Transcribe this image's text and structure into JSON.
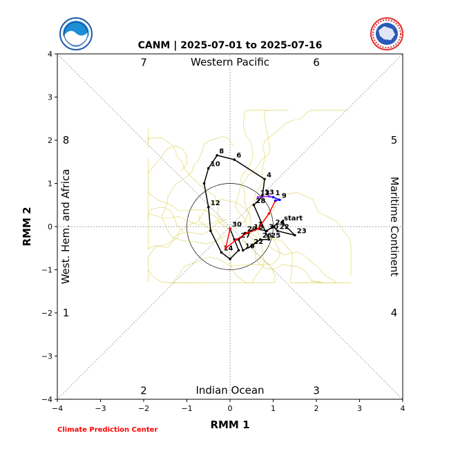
{
  "title": "CANM | 2025-07-01 to 2025-07-16",
  "credit": "Climate Prediction Center",
  "chart_data": {
    "type": "line",
    "xlabel": "RMM 1",
    "ylabel": "RMM 2",
    "xlim": [
      -4,
      4
    ],
    "ylim": [
      -4,
      4
    ],
    "xticks": [
      "−4",
      "−3",
      "−2",
      "−1",
      "0",
      "1",
      "2",
      "3",
      "4"
    ],
    "yticks": [
      "−4",
      "−3",
      "−2",
      "−1",
      "0",
      "1",
      "2",
      "3",
      "4"
    ],
    "regions": {
      "top": "Western Pacific",
      "bottom": "Indian Ocean",
      "left": "West. Hem. and Africa",
      "right": "Maritime Continent"
    },
    "phases": [
      {
        "label": "1",
        "x": -3.8,
        "y": -2.0
      },
      {
        "label": "2",
        "x": -2.0,
        "y": -3.8
      },
      {
        "label": "3",
        "x": 2.0,
        "y": -3.8
      },
      {
        "label": "4",
        "x": 3.8,
        "y": -2.0
      },
      {
        "label": "5",
        "x": 3.8,
        "y": 2.0
      },
      {
        "label": "6",
        "x": 2.0,
        "y": 3.8
      },
      {
        "label": "7",
        "x": -2.0,
        "y": 3.8
      },
      {
        "label": "8",
        "x": -3.8,
        "y": 2.0
      }
    ],
    "series": [
      {
        "color": "#000000",
        "points": [
          {
            "x": 1.2,
            "y": 0.1,
            "label": "start"
          },
          {
            "x": 1.5,
            "y": -0.2,
            "label": "23"
          },
          {
            "x": 1.1,
            "y": -0.1,
            "label": "22"
          },
          {
            "x": 1.0,
            "y": 0.0,
            "label": "24"
          },
          {
            "x": 0.85,
            "y": -0.1,
            "label": "30"
          },
          {
            "x": 0.6,
            "y": -0.05,
            "label": "1"
          },
          {
            "x": 0.5,
            "y": -0.1,
            "label": "18"
          },
          {
            "x": 0.35,
            "y": -0.15,
            "label": "20"
          },
          {
            "x": 0.2,
            "y": -0.3,
            "label": "27"
          },
          {
            "x": 0.3,
            "y": -0.55,
            "label": "16"
          },
          {
            "x": 0.5,
            "y": -0.45,
            "label": "22"
          },
          {
            "x": 0.7,
            "y": -0.3,
            "label": "26"
          },
          {
            "x": 0.9,
            "y": -0.3,
            "label": "25"
          },
          {
            "x": 0.55,
            "y": 0.5,
            "label": "28"
          },
          {
            "x": 0.75,
            "y": 0.7,
            "label": "13"
          },
          {
            "x": 0.8,
            "y": 1.1,
            "label": "4"
          },
          {
            "x": 0.1,
            "y": 1.55,
            "label": "6"
          },
          {
            "x": -0.3,
            "y": 1.65,
            "label": "8"
          },
          {
            "x": -0.5,
            "y": 1.35,
            "label": "10"
          },
          {
            "x": -0.6,
            "y": 1.0,
            "label": ""
          },
          {
            "x": -0.5,
            "y": 0.45,
            "label": "12"
          },
          {
            "x": -0.45,
            "y": -0.1,
            "label": ""
          },
          {
            "x": -0.2,
            "y": -0.6,
            "label": "14"
          },
          {
            "x": 0.0,
            "y": -0.75,
            "label": ""
          },
          {
            "x": 0.2,
            "y": -0.55,
            "label": ""
          },
          {
            "x": 0.1,
            "y": -0.3,
            "label": ""
          },
          {
            "x": 0.0,
            "y": -0.05,
            "label": "30"
          }
        ]
      },
      {
        "color": "#ff0000",
        "points": [
          {
            "x": 0.0,
            "y": -0.05,
            "label": ""
          },
          {
            "x": -0.1,
            "y": -0.5,
            "label": ""
          },
          {
            "x": 0.15,
            "y": -0.3,
            "label": ""
          },
          {
            "x": 0.4,
            "y": -0.15,
            "label": ""
          },
          {
            "x": 0.65,
            "y": -0.05,
            "label": ""
          },
          {
            "x": 0.9,
            "y": 0.3,
            "label": ""
          },
          {
            "x": 1.05,
            "y": 0.6,
            "label": ""
          }
        ]
      },
      {
        "color": "#0000ff",
        "points": [
          {
            "x": 1.05,
            "y": 0.6,
            "label": ""
          },
          {
            "x": 1.15,
            "y": 0.62,
            "label": "9"
          },
          {
            "x": 1.0,
            "y": 0.68,
            "label": "1"
          },
          {
            "x": 0.9,
            "y": 0.7,
            "label": ""
          }
        ]
      },
      {
        "color": "#a020f0",
        "points": [
          {
            "x": 0.9,
            "y": 0.7,
            "label": ""
          },
          {
            "x": 0.65,
            "y": 0.68,
            "label": "13"
          }
        ]
      }
    ]
  }
}
